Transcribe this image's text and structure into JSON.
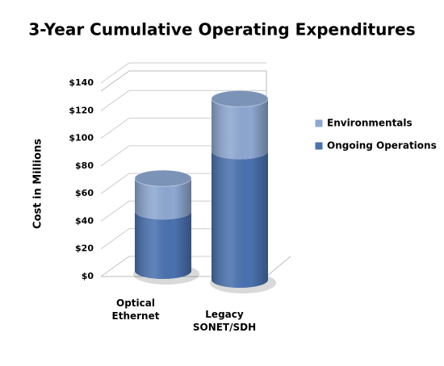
{
  "chart_data": {
    "type": "bar",
    "stacked": true,
    "title": "3-Year Cumulative Operating Expenditures",
    "y_label": "Cost in Millions",
    "categories": [
      "Optical Ethernet",
      "Legacy SONET/SDH"
    ],
    "series": [
      {
        "name": "Ongoing Operations",
        "color": "#4a72b0",
        "values": [
          43,
          93
        ]
      },
      {
        "name": "Environmentals",
        "color": "#8ea8d2",
        "values": [
          24,
          38
        ]
      }
    ],
    "ylim": [
      0,
      140
    ],
    "yticks": [
      {
        "value": 0,
        "label": "$0"
      },
      {
        "value": 20,
        "label": "$20"
      },
      {
        "value": 40,
        "label": "$40"
      },
      {
        "value": 60,
        "label": "$60"
      },
      {
        "value": 80,
        "label": "$80"
      },
      {
        "value": 100,
        "label": "$100"
      },
      {
        "value": 120,
        "label": "$120"
      },
      {
        "value": 140,
        "label": "$140"
      }
    ],
    "grid": true,
    "legend": "right"
  }
}
